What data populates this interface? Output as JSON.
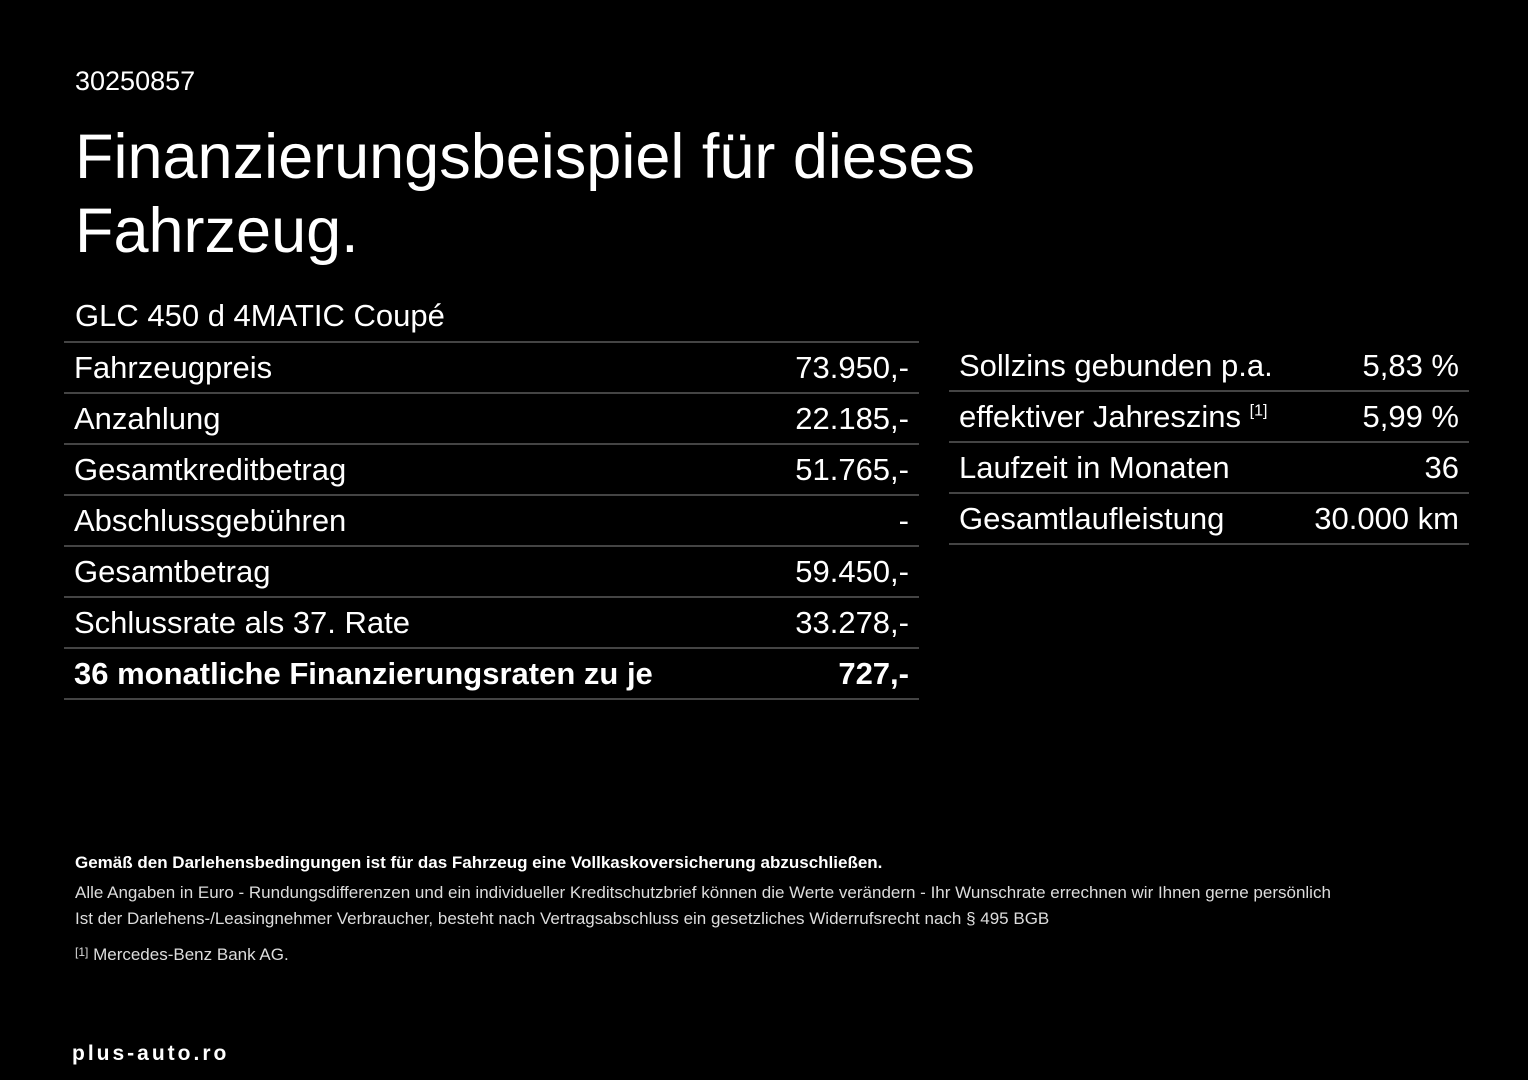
{
  "id": "30250857",
  "title": "Finanzierungsbeispiel für dieses Fahrzeug.",
  "model": "GLC 450 d 4MATIC Coupé",
  "left_table": {
    "rows": [
      [
        "Fahrzeugpreis",
        "73.950,-"
      ],
      [
        "Anzahlung",
        "22.185,-"
      ],
      [
        "Gesamtkreditbetrag",
        "51.765,-"
      ],
      [
        "Abschlussgebühren",
        "-"
      ],
      [
        "Gesamtbetrag",
        "59.450,-"
      ],
      [
        "Schlussrate als 37. Rate",
        "33.278,-"
      ],
      [
        "36 monatliche Finanzierungsraten zu je",
        "727,-"
      ]
    ]
  },
  "right_table": {
    "rows": [
      [
        "Sollzins gebunden p.a.",
        "5,83 %"
      ],
      [
        "effektiver Jahreszins",
        "5,99 %"
      ],
      [
        "Laufzeit in Monaten",
        "36"
      ],
      [
        "Gesamtlaufleistung",
        "30.000 km"
      ]
    ],
    "footnote_ref": "[1]"
  },
  "notes": {
    "bold": "Gemäß den Darlehensbedingungen ist für das Fahrzeug eine Vollkaskoversicherung abzuschließen.",
    "line1": "Alle Angaben in Euro - Rundungsdifferenzen und ein individueller Kreditschutzbrief können die Werte verändern - Ihr Wunschrate errechnen wir Ihnen gerne persönlich",
    "line2": "Ist der Darlehens-/Leasingnehmer Verbraucher, besteht nach Vertragsabschluss ein gesetzliches Widerrufsrecht nach § 495 BGB",
    "footnote_mark": "[1]",
    "footnote": "Mercedes-Benz Bank AG."
  },
  "watermark": "plus-auto.ro"
}
